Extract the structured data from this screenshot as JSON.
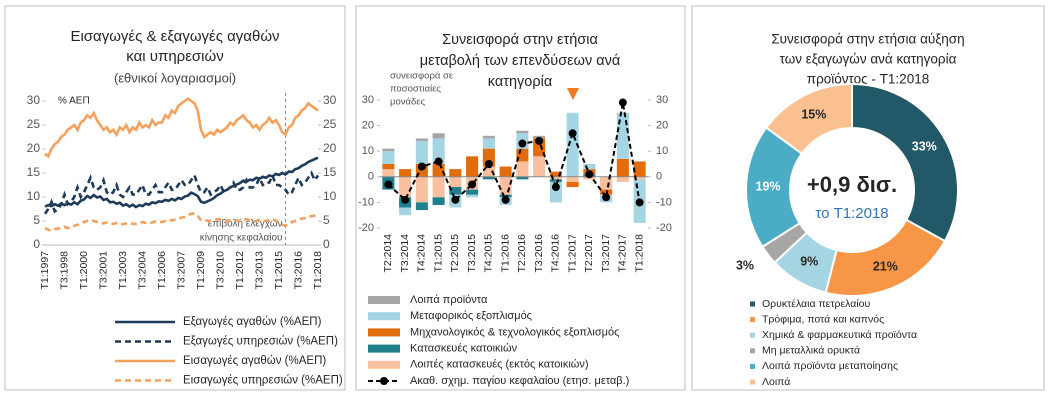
{
  "chart_data": [
    {
      "type": "line",
      "title": [
        "Εισαγωγές & εξαγωγές αγαθών",
        "και υπηρεσιών"
      ],
      "subtitle": "(εθνικοί λογαριασμοί)",
      "y_label": "% ΑΕΠ",
      "annotation": [
        "επιβολή ελέγχων",
        "κίνησης κεφαλαίου"
      ],
      "categories": [
        "T1:1997",
        null,
        null,
        null,
        null,
        null,
        "T3:1998",
        null,
        null,
        null,
        null,
        null,
        "T1:2000",
        null,
        null,
        null,
        null,
        null,
        "T3:2001",
        null,
        null,
        null,
        null,
        null,
        "T1:2003",
        null,
        null,
        null,
        null,
        null,
        "T3:2004",
        null,
        null,
        null,
        null,
        null,
        "T1:2006",
        null,
        null,
        null,
        null,
        null,
        "T3:2007",
        null,
        null,
        null,
        null,
        null,
        "T1:2009",
        null,
        null,
        null,
        null,
        null,
        "T3:2010",
        null,
        null,
        null,
        null,
        null,
        "T1:2012",
        null,
        null,
        null,
        null,
        null,
        "T3:2013",
        null,
        null,
        null,
        null,
        null,
        "T1:2015",
        null,
        null,
        null,
        null,
        null,
        "T3:2016",
        null,
        null,
        null,
        null,
        null,
        "T1:2018"
      ],
      "series": [
        {
          "name": "Εξαγωγές αγαθών (%ΑΕΠ)",
          "color": "#1f3b5a",
          "dash": false,
          "values": [
            8.0,
            8.3,
            8.1,
            8.5,
            8.2,
            8.6,
            8.3,
            8.7,
            8.4,
            8.9,
            8.5,
            9.2,
            9.5,
            10.2,
            9.8,
            10.4,
            9.9,
            10.1,
            9.4,
            9.6,
            8.9,
            9.0,
            8.6,
            8.8,
            8.2,
            8.5,
            8.0,
            8.4,
            7.9,
            8.3,
            8.1,
            8.6,
            8.4,
            8.9,
            8.7,
            9.1,
            9.0,
            9.4,
            9.2,
            9.6,
            9.3,
            9.8,
            9.6,
            10.1,
            10.3,
            10.9,
            10.6,
            10.2,
            9.0,
            8.8,
            9.1,
            9.4,
            9.8,
            10.4,
            10.7,
            11.2,
            11.5,
            12.0,
            12.3,
            12.6,
            12.9,
            13.4,
            13.2,
            13.6,
            13.5,
            14.0,
            13.8,
            14.2,
            14.0,
            14.5,
            14.3,
            14.8,
            14.6,
            15.0,
            14.7,
            15.3,
            15.2,
            15.8,
            16.0,
            16.5,
            16.8,
            17.3,
            17.6,
            17.9,
            18.2
          ]
        },
        {
          "name": "Εξαγωγές υπηρεσιών (%ΑΕΠ)",
          "color": "#1f3b5a",
          "dash": true,
          "values": [
            6.5,
            7.5,
            9.0,
            7.0,
            7.5,
            8.5,
            10.5,
            8.5,
            9.0,
            10.0,
            12.0,
            10.0,
            11.0,
            12.5,
            14.0,
            12.0,
            11.5,
            12.0,
            13.5,
            11.0,
            10.5,
            11.0,
            12.5,
            10.5,
            10.0,
            11.0,
            12.0,
            10.5,
            10.5,
            11.5,
            12.5,
            10.5,
            10.5,
            11.5,
            12.5,
            11.0,
            11.0,
            12.0,
            13.0,
            11.5,
            11.5,
            12.5,
            13.5,
            12.5,
            12.5,
            13.5,
            14.5,
            12.5,
            11.0,
            11.0,
            12.0,
            10.5,
            11.0,
            11.5,
            12.5,
            11.0,
            11.5,
            12.0,
            13.0,
            11.5,
            11.5,
            12.0,
            13.5,
            12.0,
            12.0,
            12.5,
            14.0,
            12.5,
            13.0,
            13.0,
            14.5,
            12.5,
            12.5,
            12.0,
            11.5,
            10.5,
            11.0,
            12.5,
            14.0,
            12.5,
            13.0,
            14.0,
            15.0,
            13.5,
            14.5
          ]
        },
        {
          "name": "Εισαγωγές αγαθών (%ΑΕΠ)",
          "color": "#f4a15d",
          "dash": false,
          "values": [
            19.0,
            18.5,
            20.0,
            21.0,
            21.5,
            22.5,
            23.0,
            24.0,
            24.5,
            25.0,
            24.0,
            25.5,
            26.0,
            27.0,
            26.5,
            27.5,
            26.0,
            25.0,
            24.0,
            24.5,
            23.5,
            24.0,
            23.0,
            24.5,
            24.0,
            25.0,
            23.5,
            24.5,
            24.0,
            25.5,
            24.5,
            25.0,
            24.5,
            26.0,
            25.0,
            25.5,
            25.5,
            27.0,
            26.5,
            28.0,
            27.5,
            29.0,
            29.5,
            30.0,
            30.5,
            30.0,
            29.5,
            28.0,
            24.0,
            22.5,
            23.0,
            23.5,
            23.0,
            24.0,
            23.5,
            24.0,
            24.5,
            25.5,
            25.0,
            26.0,
            26.5,
            27.0,
            26.0,
            25.5,
            24.5,
            25.0,
            24.0,
            25.0,
            25.5,
            26.5,
            25.5,
            26.0,
            25.0,
            23.5,
            23.0,
            24.5,
            25.0,
            26.5,
            27.0,
            28.0,
            28.5,
            29.5,
            29.0,
            28.5,
            28.0
          ]
        },
        {
          "name": "Εισαγωγές υπηρεσιών (%ΑΕΠ)",
          "color": "#f4a15d",
          "dash": true,
          "values": [
            3.5,
            3.2,
            3.0,
            3.3,
            3.4,
            3.6,
            3.8,
            3.5,
            3.8,
            4.0,
            4.2,
            4.5,
            4.8,
            5.0,
            5.2,
            5.0,
            4.8,
            4.6,
            4.5,
            4.7,
            4.5,
            4.4,
            4.6,
            4.5,
            4.3,
            4.5,
            4.6,
            4.4,
            4.4,
            4.6,
            4.8,
            4.6,
            4.5,
            4.7,
            4.9,
            4.8,
            4.8,
            5.0,
            5.2,
            5.1,
            5.3,
            5.5,
            5.7,
            5.8,
            6.2,
            6.5,
            6.6,
            6.0,
            5.2,
            5.0,
            5.1,
            5.0,
            5.2,
            5.4,
            5.3,
            5.1,
            5.0,
            5.2,
            5.3,
            5.1,
            5.0,
            5.2,
            5.4,
            5.1,
            4.9,
            5.0,
            5.2,
            5.0,
            5.0,
            5.2,
            5.4,
            5.1,
            4.6,
            4.2,
            4.0,
            4.4,
            4.8,
            5.0,
            5.3,
            5.5,
            5.6,
            5.8,
            6.0,
            6.1,
            6.2
          ]
        }
      ],
      "ylim": [
        0,
        30
      ],
      "yticks": [
        0,
        5,
        10,
        15,
        20,
        25,
        30
      ],
      "y2lim": [
        0,
        30
      ],
      "y2ticks": [
        0,
        5,
        10,
        15,
        20,
        25,
        30
      ],
      "grid": false
    },
    {
      "type": "bar",
      "stacked": true,
      "title": [
        "Συνεισφορά στην ετήσια",
        "μεταβολή των επενδύσεων ανά",
        "κατηγορία"
      ],
      "y_label": [
        "συνεισφορά σε",
        "ποσοστιαίες",
        "μονάδες"
      ],
      "categories": [
        "T2:2014",
        "T3:2014",
        "T4:2014",
        "T1:2015",
        "T2:2015",
        "T3:2015",
        "T4:2015",
        "T1:2016",
        "T2:2016",
        "T3:2016",
        "T4:2016",
        "T1:2017",
        "T2:2017",
        "T3:2017",
        "T4:2017",
        "T1:2018"
      ],
      "series": [
        {
          "name": "Λοιπά προϊόντα",
          "color": "#a6a6a6",
          "values": [
            1,
            0,
            1,
            2,
            0,
            0,
            1,
            0,
            1,
            1,
            0,
            0,
            0,
            0,
            0,
            0
          ]
        },
        {
          "name": "Μεταφορικός εξοπλισμός",
          "color": "#a5d5e3",
          "values": [
            5,
            -3,
            9,
            10,
            -5,
            -1,
            4,
            -3,
            6,
            0,
            -8,
            25,
            2,
            -3,
            18,
            -17
          ]
        },
        {
          "name": "Μηχανολογικός & τεχνολογικός εξοπλισμός",
          "color": "#e36c0a",
          "values": [
            2,
            3,
            5,
            5,
            3,
            8,
            7,
            4,
            5,
            7,
            2,
            -2,
            2,
            -2,
            7,
            6
          ]
        },
        {
          "name": "Κατασκευές κατοικιών",
          "color": "#1f7f8c",
          "values": [
            -5,
            -4,
            -3,
            -3,
            -3,
            -2,
            -1,
            -1,
            -1,
            0,
            -1,
            0,
            1,
            0,
            0,
            0
          ]
        },
        {
          "name": "Λοιπές κατασκευές (εκτός κατοικιών)",
          "color": "#f9c09f",
          "values": [
            3,
            -8,
            -10,
            -8,
            -4,
            -5,
            4,
            -7,
            6,
            8,
            -1,
            -2,
            -1,
            -5,
            -2,
            -1
          ]
        },
        {
          "name": "Ακαθ. σχημ. παγίου κεφαλαίου (ετησ. μεταβ.)",
          "color": "#000000",
          "type": "line",
          "values": [
            -3,
            -9,
            4,
            6,
            -9,
            -3,
            5,
            -9,
            13,
            14,
            -4,
            17,
            1,
            -8,
            29,
            -10
          ]
        }
      ],
      "ylim": [
        -20,
        30
      ],
      "yticks": [
        -20,
        -10,
        0,
        10,
        20,
        30
      ],
      "y2lim": [
        -20,
        30
      ],
      "y2ticks": [
        -20,
        -10,
        0,
        10,
        20,
        30
      ],
      "grid": false
    },
    {
      "type": "pie",
      "donut": true,
      "title": [
        "Συνεισφορά στην ετήσια αύξηση",
        "των εξαγωγών ανά κατηγορία",
        "προϊόντος - T1:2018"
      ],
      "center_value": "+0,9 δισ.",
      "center_label": "το T1:2018",
      "categories": [
        "Ορυκτέλαια πετρελαίου",
        "Τρόφιμα, ποτά και καπνός",
        "Χημικά & φαρμακευτικά προϊόντα",
        "Μη μεταλλικά ορυκτά",
        "Λοιπά προϊόντα μεταποίησης",
        "Λοιπά"
      ],
      "values": [
        33,
        21,
        9,
        3,
        19,
        15
      ],
      "value_labels": [
        "33%",
        "21%",
        "9%",
        "3%",
        "19%",
        "15%"
      ],
      "colors": [
        "#215968",
        "#f79646",
        "#a5d5e3",
        "#a6a6a6",
        "#4bacc6",
        "#fac090"
      ]
    }
  ]
}
